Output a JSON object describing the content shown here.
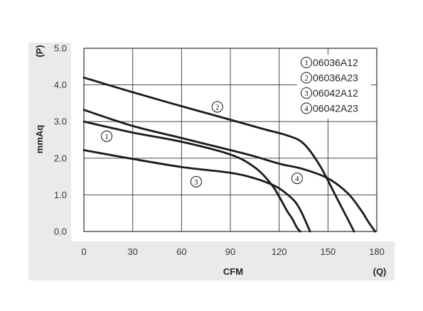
{
  "chart_data": {
    "type": "line",
    "xlabel": "CFM",
    "xlabel_unit": "(Q)",
    "ylabel": "mmAq",
    "ylabel_unit": "(P)",
    "xlim": [
      0,
      180
    ],
    "ylim": [
      0,
      5
    ],
    "x_ticks": [
      "0",
      "30",
      "60",
      "90",
      "120",
      "150",
      "180"
    ],
    "y_ticks": [
      "0.0",
      "1.0",
      "2.0",
      "3.0",
      "4.0",
      "5.0"
    ],
    "grid": true,
    "legend_position": "top-right",
    "series": [
      {
        "name": "06036A12",
        "marker": "1",
        "x": [
          0,
          30,
          60,
          90,
          105,
          115,
          120,
          125,
          128,
          131,
          133
        ],
        "y": [
          3.0,
          2.7,
          2.45,
          2.1,
          1.75,
          1.3,
          0.95,
          0.55,
          0.35,
          0.1,
          0.0
        ]
      },
      {
        "name": "06036A23",
        "marker": "2",
        "x": [
          0,
          30,
          60,
          90,
          110,
          125,
          135,
          145,
          155,
          162,
          166
        ],
        "y": [
          4.2,
          3.8,
          3.42,
          3.05,
          2.8,
          2.62,
          2.4,
          1.8,
          0.95,
          0.35,
          0.0
        ]
      },
      {
        "name": "06042A12",
        "marker": "3",
        "x": [
          0,
          30,
          60,
          90,
          105,
          117,
          124,
          130,
          134,
          137,
          139
        ],
        "y": [
          2.22,
          1.98,
          1.76,
          1.6,
          1.45,
          1.25,
          1.05,
          0.8,
          0.5,
          0.2,
          0.0
        ]
      },
      {
        "name": "06042A23",
        "marker": "4",
        "x": [
          0,
          30,
          60,
          90,
          105,
          120,
          135,
          150,
          162,
          170,
          175,
          179
        ],
        "y": [
          3.32,
          2.88,
          2.55,
          2.22,
          2.05,
          1.85,
          1.7,
          1.45,
          1.05,
          0.6,
          0.25,
          0.0
        ]
      }
    ],
    "curve_labels": [
      {
        "marker": "1",
        "x": 14,
        "y": 2.6
      },
      {
        "marker": "2",
        "x": 82,
        "y": 3.4
      },
      {
        "marker": "3",
        "x": 69,
        "y": 1.36
      },
      {
        "marker": "4",
        "x": 131,
        "y": 1.45
      }
    ]
  }
}
